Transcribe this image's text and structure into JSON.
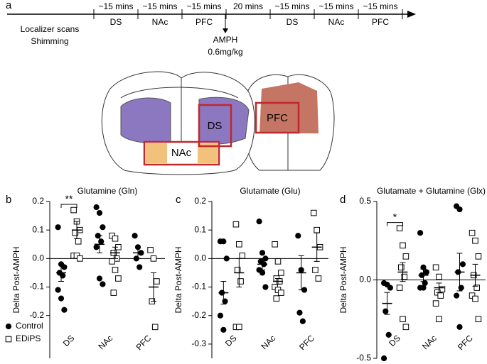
{
  "panel_labels": [
    "a",
    "b",
    "c",
    "d"
  ],
  "timeline": {
    "setup": [
      "Localizer scans",
      "Shimming"
    ],
    "segments": [
      {
        "duration": "~15 mins",
        "region": "DS"
      },
      {
        "duration": "~15 mins",
        "region": "NAc"
      },
      {
        "duration": "~15 mins",
        "region": "PFC"
      },
      {
        "duration": "20 mins"
      },
      {
        "duration": "~15 mins",
        "region": "DS"
      },
      {
        "duration": "~15 mins",
        "region": "NAc"
      },
      {
        "duration": "~15 mins",
        "region": "PFC"
      }
    ],
    "drug": [
      "AMPH",
      "0.6mg/kg"
    ]
  },
  "diagram": {
    "regions": [
      "DS",
      "NAc",
      "PFC"
    ]
  },
  "chart_data": [
    {
      "type": "dotplot",
      "title": "Glutamine (Gln)",
      "ylabel": "Delta Post-AMPH",
      "categories": [
        "DS",
        "NAc",
        "PFC"
      ],
      "ylim": [
        -0.35,
        0.2
      ],
      "yticks": [
        -0.2,
        -0.1,
        {
          "value": 0,
          "label": "0.0"
        },
        0.1,
        0.2
      ],
      "legend": "lower-left",
      "annotations": [
        {
          "text": "**",
          "category": "DS"
        }
      ],
      "series": [
        {
          "name": "Control",
          "marker": "circle",
          "filled": true,
          "color": "#000000",
          "values": [
            [
              0.11,
              -0.02,
              -0.03,
              -0.05,
              -0.06,
              -0.11,
              -0.14,
              -0.18
            ],
            [
              0.18,
              0.16,
              0.11,
              0.08,
              0.06,
              0.04,
              -0.07,
              -0.09
            ],
            [
              0.08,
              0.04,
              0.02,
              0.0,
              -0.03
            ]
          ],
          "means": [
            -0.05,
            0.05,
            0.02
          ],
          "sems": [
            0.03,
            0.03,
            0.02
          ]
        },
        {
          "name": "EDiPS",
          "marker": "square",
          "filled": false,
          "color": "#000000",
          "values": [
            [
              0.17,
              0.13,
              0.1,
              0.09,
              0.06,
              0.01,
              0.01,
              0.0
            ],
            [
              0.08,
              0.07,
              0.04,
              0.02,
              0.0,
              -0.01,
              -0.04,
              -0.07,
              -0.12
            ],
            [
              0.03,
              0.0,
              -0.08,
              -0.15,
              -0.24
            ]
          ],
          "means": [
            0.1,
            0.02,
            -0.1
          ],
          "sems": [
            0.03,
            0.02,
            0.05
          ]
        }
      ]
    },
    {
      "type": "dotplot",
      "title": "Glutamate (Glu)",
      "ylabel": "Delta Post-AMPH",
      "categories": [
        "DS",
        "NAc",
        "PFC"
      ],
      "ylim": [
        -0.35,
        0.2
      ],
      "yticks": [
        -0.3,
        -0.2,
        -0.1,
        {
          "value": 0,
          "label": "0.0"
        },
        0.1,
        0.2
      ],
      "series": [
        {
          "name": "Control",
          "marker": "circle",
          "filled": true,
          "color": "#000000",
          "values": [
            [
              0.06,
              0.06,
              0.0,
              -0.12,
              -0.15,
              -0.2,
              -0.25
            ],
            [
              0.13,
              0.02,
              0.0,
              -0.01,
              -0.02,
              -0.04,
              -0.05,
              -0.1
            ],
            [
              0.08,
              -0.04,
              -0.11,
              -0.19,
              -0.22
            ]
          ],
          "means": [
            -0.12,
            -0.02,
            -0.05
          ],
          "sems": [
            0.04,
            0.02,
            0.06
          ]
        },
        {
          "name": "EDiPS",
          "marker": "square",
          "filled": false,
          "color": "#000000",
          "values": [
            [
              0.12,
              0.05,
              0.01,
              -0.04,
              -0.08,
              -0.24,
              -0.24
            ],
            [
              0.05,
              -0.01,
              -0.05,
              -0.07,
              -0.08,
              -0.1,
              -0.11,
              -0.12,
              -0.14
            ],
            [
              0.16,
              0.1,
              0.04,
              -0.04,
              -0.07
            ]
          ],
          "means": [
            -0.05,
            -0.08,
            0.04
          ],
          "sems": [
            0.05,
            0.01,
            0.05
          ]
        }
      ]
    },
    {
      "type": "dotplot",
      "title": "Glutamate + Glutamine (Glx)",
      "ylabel": "Delta Post-AMPH",
      "categories": [
        "DS",
        "NAc",
        "PFC"
      ],
      "ylim": [
        -0.5,
        0.5
      ],
      "yticks": [
        -0.5,
        {
          "value": 0,
          "label": "0.0"
        },
        0.5
      ],
      "annotations": [
        {
          "text": "*",
          "category": "DS"
        }
      ],
      "series": [
        {
          "name": "Control",
          "marker": "circle",
          "filled": true,
          "color": "#000000",
          "values": [
            [
              -0.02,
              -0.03,
              -0.05,
              -0.2,
              -0.35,
              -0.5
            ],
            [
              0.3,
              0.08,
              0.05,
              0.03,
              -0.02,
              -0.05,
              -0.05
            ],
            [
              0.47,
              0.45,
              0.1,
              0.05,
              -0.05,
              -0.1,
              -0.3
            ]
          ],
          "means": [
            -0.15,
            0.03,
            0.05
          ],
          "sems": [
            0.07,
            0.04,
            0.12
          ]
        },
        {
          "name": "EDiPS",
          "marker": "square",
          "filled": false,
          "color": "#000000",
          "values": [
            [
              0.33,
              0.22,
              0.15,
              0.08,
              0.02,
              -0.05,
              -0.25,
              -0.3
            ],
            [
              0.08,
              0.02,
              -0.06,
              -0.08,
              -0.1,
              -0.15,
              -0.25
            ],
            [
              0.3,
              0.25,
              0.15,
              0.03,
              -0.05,
              -0.1,
              -0.12,
              -0.25
            ]
          ],
          "means": [
            0.05,
            -0.05,
            0.03
          ],
          "sems": [
            0.06,
            0.03,
            0.07
          ]
        }
      ]
    }
  ]
}
